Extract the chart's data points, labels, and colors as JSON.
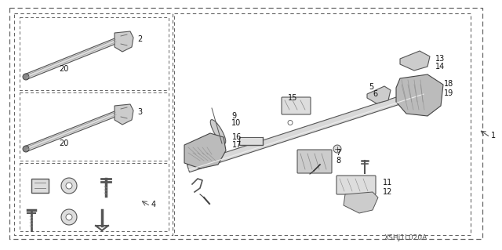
{
  "bg_color": "#ffffff",
  "dash_color": "#666666",
  "text_color": "#111111",
  "fig_width": 6.4,
  "fig_height": 3.19,
  "dpi": 100,
  "watermark": "XSHJ1L020A"
}
